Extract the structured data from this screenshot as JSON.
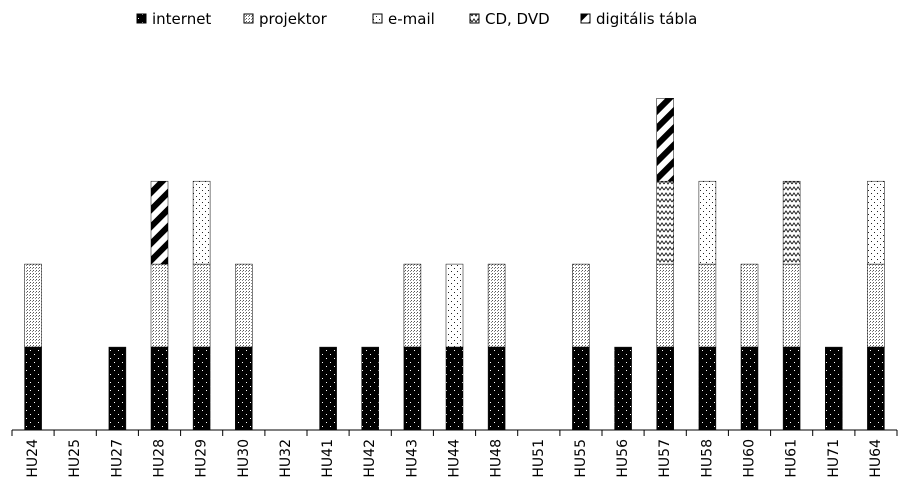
{
  "chart_data": {
    "type": "bar",
    "stacked": true,
    "categories": [
      "HU24",
      "HU25",
      "HU27",
      "HU28",
      "HU29",
      "HU30",
      "HU32",
      "HU41",
      "HU42",
      "HU43",
      "HU44",
      "HU48",
      "HU51",
      "HU55",
      "HU56",
      "HU57",
      "HU58",
      "HU60",
      "HU61",
      "HU71",
      "HU64"
    ],
    "series": [
      {
        "name": "internet",
        "pattern": "dots-on-black",
        "values": [
          1,
          0,
          1,
          1,
          1,
          1,
          0,
          1,
          1,
          1,
          1,
          1,
          0,
          1,
          1,
          1,
          1,
          1,
          1,
          1,
          1
        ]
      },
      {
        "name": "projektor",
        "pattern": "fine-grid",
        "values": [
          1,
          0,
          0,
          1,
          1,
          1,
          0,
          0,
          0,
          1,
          0,
          1,
          0,
          1,
          0,
          1,
          1,
          1,
          1,
          0,
          1
        ]
      },
      {
        "name": "e-mail",
        "pattern": "sparse-dots",
        "values": [
          0,
          0,
          0,
          0,
          1,
          0,
          0,
          0,
          0,
          0,
          1,
          0,
          0,
          0,
          0,
          0,
          1,
          0,
          0,
          0,
          1
        ]
      },
      {
        "name": "CD, DVD",
        "pattern": "zigzag",
        "values": [
          0,
          0,
          0,
          0,
          0,
          0,
          0,
          0,
          0,
          0,
          0,
          0,
          0,
          0,
          0,
          1,
          0,
          0,
          1,
          0,
          0
        ]
      },
      {
        "name": "digitális tábla",
        "pattern": "diagonal",
        "values": [
          0,
          0,
          0,
          1,
          0,
          0,
          0,
          0,
          0,
          0,
          0,
          0,
          0,
          0,
          0,
          1,
          0,
          0,
          0,
          0,
          0
        ]
      }
    ],
    "ylim": [
      0,
      4.1
    ],
    "grid": false,
    "legend_position": "top"
  }
}
